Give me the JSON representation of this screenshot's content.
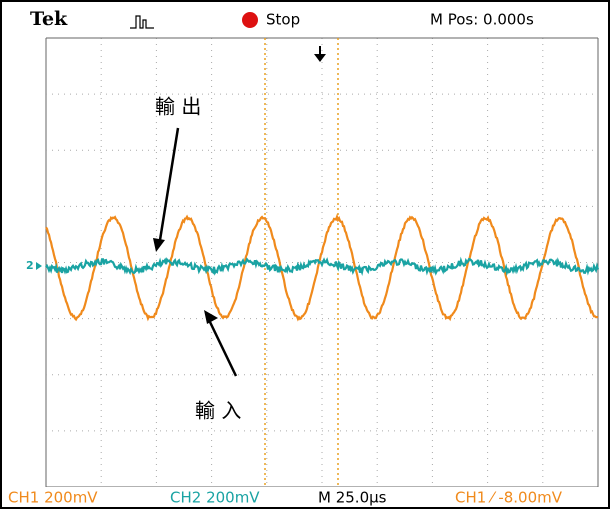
{
  "header": {
    "brand": "Tek",
    "status": "Stop",
    "position": "M Pos: 0.000s"
  },
  "channel_marker": "2",
  "annotations": {
    "output": "輸 出",
    "input": "輸 入"
  },
  "footer": {
    "ch1": "CH1 200mV",
    "ch2": "CH2 200mV",
    "timebase": "M 25.0µs",
    "trigger": "CH1 ⁄ -8.00mV"
  }
}
